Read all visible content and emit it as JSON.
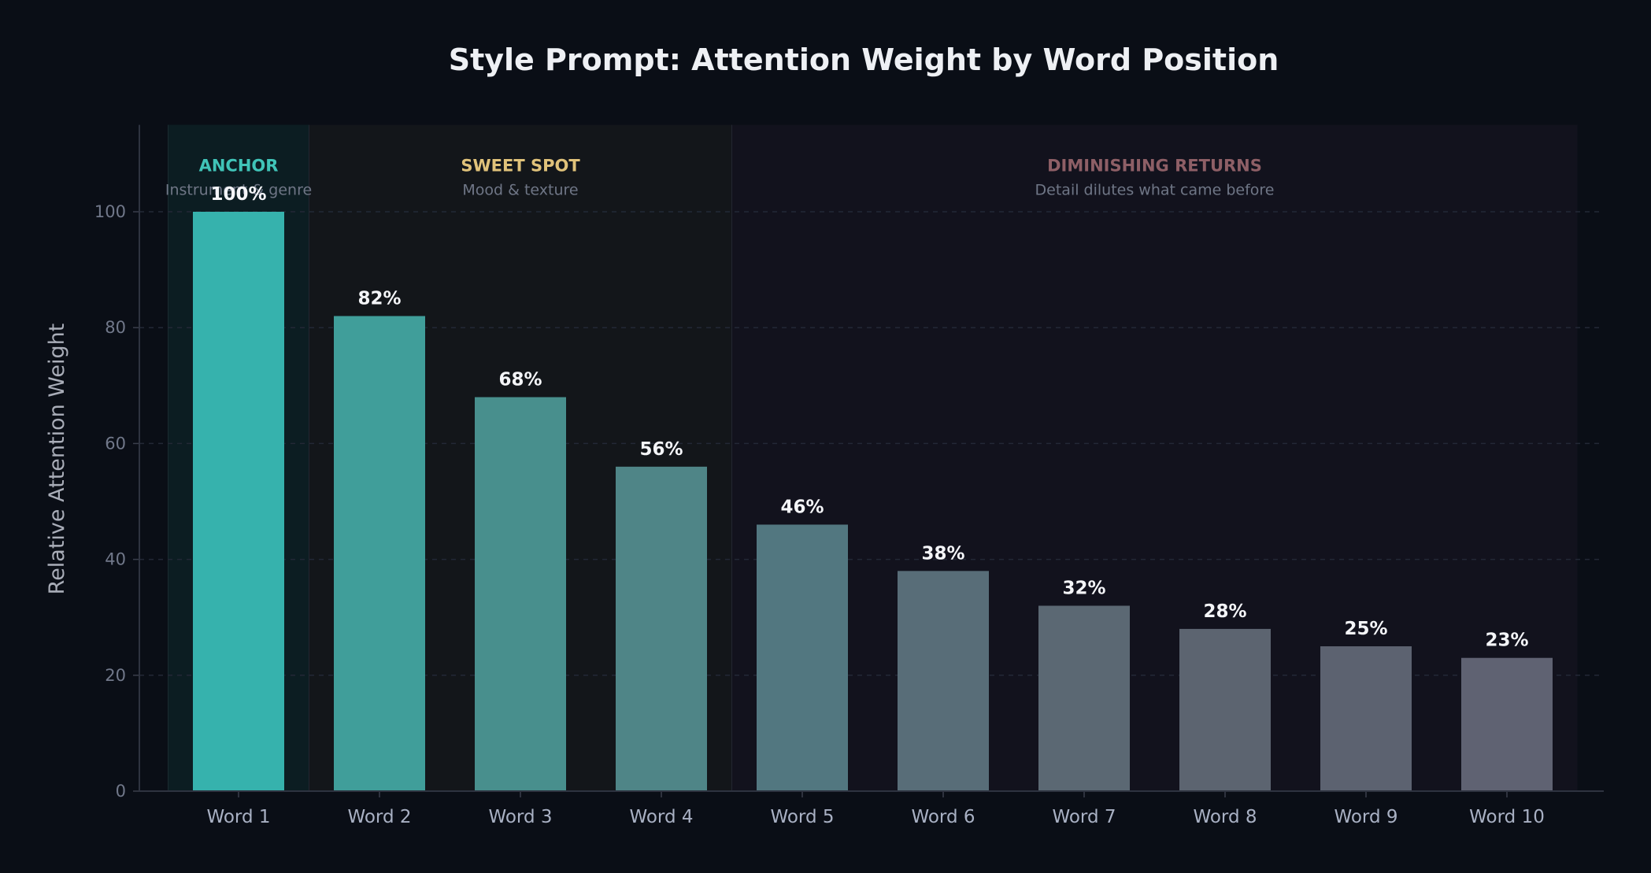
{
  "chart_data": {
    "type": "bar",
    "title": "Style Prompt: Attention Weight by Word Position",
    "xlabel": "",
    "ylabel": "Relative Attention Weight",
    "ylim": [
      0,
      115
    ],
    "yticks": [
      0,
      20,
      40,
      60,
      80,
      100
    ],
    "grid": true,
    "categories": [
      "Word 1",
      "Word 2",
      "Word 3",
      "Word 4",
      "Word 5",
      "Word 6",
      "Word 7",
      "Word 8",
      "Word 9",
      "Word 10"
    ],
    "values": [
      100,
      82,
      68,
      56,
      46,
      38,
      32,
      28,
      25,
      23
    ],
    "value_labels": [
      "100%",
      "82%",
      "68%",
      "56%",
      "46%",
      "38%",
      "32%",
      "28%",
      "25%",
      "23%"
    ],
    "bar_colors": [
      "#36b2ad",
      "#409e9a",
      "#488f8d",
      "#4f8587",
      "#527780",
      "#586d78",
      "#5b6873",
      "#5c6470",
      "#5c6270",
      "#5f6272"
    ],
    "zones": [
      {
        "title": "ANCHOR",
        "subtitle": "Instrument & genre",
        "start_index": 0,
        "end_index": 0,
        "title_color": "#40c4b8",
        "fill": "#0f2a2d",
        "fill_opacity": 0.55
      },
      {
        "title": "SWEET SPOT",
        "subtitle": "Mood & texture",
        "start_index": 1,
        "end_index": 3,
        "title_color": "#e0c27a",
        "fill": "#1b1d1f",
        "fill_opacity": 0.55
      },
      {
        "title": "DIMINISHING RETURNS",
        "subtitle": "Detail dilutes what came before",
        "start_index": 4,
        "end_index": 9,
        "title_color": "#8e5f66",
        "fill": "#171522",
        "fill_opacity": 0.65
      }
    ]
  }
}
